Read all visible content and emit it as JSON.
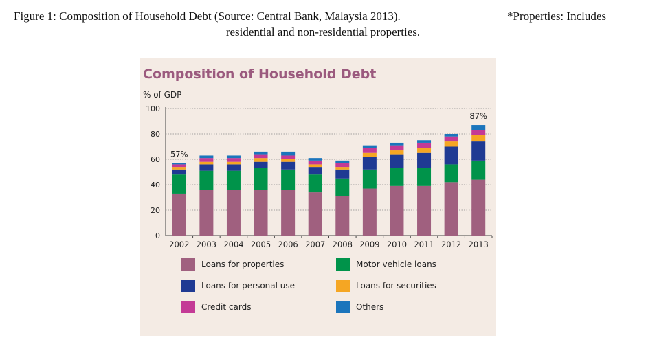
{
  "caption": {
    "line1": "Figure 1: Composition of Household Debt (Source: Central Bank, Malaysia 2013).",
    "note": "*Properties: Includes",
    "line2": "residential and non-residential properties."
  },
  "chart_data": {
    "type": "bar",
    "stacked": true,
    "title": "Composition of Household Debt",
    "ylabel": "% of GDP",
    "xlabel": "",
    "ylim": [
      0,
      100
    ],
    "yticks": [
      0,
      20,
      40,
      60,
      80,
      100
    ],
    "grid": "dotted horizontal",
    "categories": [
      "2002",
      "2003",
      "2004",
      "2005",
      "2006",
      "2007",
      "2008",
      "2009",
      "2010",
      "2011",
      "2012",
      "2013"
    ],
    "series": [
      {
        "name": "Loans for properties",
        "color": "#a0607f",
        "values": [
          33,
          36,
          36,
          36,
          36,
          34,
          31,
          37,
          39,
          39,
          42,
          44
        ]
      },
      {
        "name": "Motor vehicle loans",
        "color": "#00934a",
        "values": [
          15,
          15,
          15,
          17,
          16,
          14,
          14,
          15,
          14,
          14,
          14,
          15
        ]
      },
      {
        "name": "Loans for personal use",
        "color": "#1f3a93",
        "values": [
          4,
          5,
          5,
          5,
          6,
          6,
          7,
          10,
          11,
          12,
          14,
          15
        ]
      },
      {
        "name": "Loans for securities",
        "color": "#f5a623",
        "values": [
          2,
          2,
          2,
          3,
          2,
          2,
          2,
          3,
          3,
          4,
          4,
          5
        ]
      },
      {
        "name": "Credit cards",
        "color": "#c43a96",
        "values": [
          2,
          3,
          3,
          3,
          3,
          3,
          3,
          4,
          4,
          4,
          4,
          4
        ]
      },
      {
        "name": "Others",
        "color": "#1b75bc",
        "values": [
          1,
          2,
          2,
          2,
          3,
          2,
          2,
          2,
          2,
          2,
          2,
          4
        ]
      }
    ],
    "annotations": [
      {
        "category": "2002",
        "text": "57%"
      },
      {
        "category": "2013",
        "text": "87%"
      }
    ],
    "legend_position": "bottom"
  }
}
